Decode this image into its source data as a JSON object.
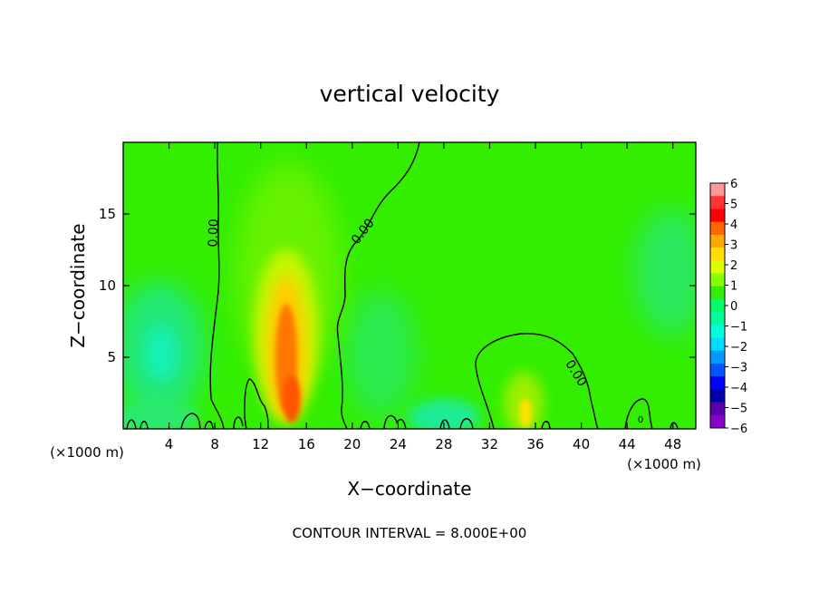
{
  "chart_data": {
    "type": "heatmap",
    "title": "vertical velocity",
    "xlabel": "X−coordinate",
    "ylabel": "Z−coordinate",
    "x_unit": "(×1000 m)",
    "y_unit": "(×1000 m)",
    "xlim": [
      0,
      50
    ],
    "ylim": [
      0,
      20
    ],
    "x_ticks": [
      4,
      8,
      12,
      16,
      20,
      24,
      28,
      32,
      36,
      40,
      44,
      48
    ],
    "y_ticks": [
      5,
      10,
      15
    ],
    "colorbar": {
      "labels": [
        "6",
        "5",
        "4",
        "3",
        "2",
        "1",
        "0",
        "−1",
        "−2",
        "−3",
        "−4",
        "−5",
        "−6"
      ],
      "range": [
        -6,
        6
      ],
      "colors": [
        "#ff9999",
        "#ff3333",
        "#ff0000",
        "#ff6600",
        "#ffaa00",
        "#ffe000",
        "#ddff00",
        "#88ff00",
        "#33ee00",
        "#00ff66",
        "#00ff99",
        "#00ffdd",
        "#00ddff",
        "#0099ff",
        "#0055ff",
        "#0000ff",
        "#0000aa",
        "#5500aa",
        "#8800cc"
      ]
    },
    "contour_labels": [
      "0.00",
      "0.00",
      "0.00",
      "0"
    ],
    "field_features": [
      {
        "kind": "updraft",
        "x": 14.5,
        "z": 4,
        "value": 3.5
      },
      {
        "kind": "updraft",
        "x": 14.5,
        "z": 9,
        "value": 1.2
      },
      {
        "kind": "updraft",
        "x": 35.5,
        "z": 2,
        "value": 2.0
      },
      {
        "kind": "downdraft",
        "x": 3,
        "z": 5,
        "value": -1.5
      },
      {
        "kind": "downdraft",
        "x": 23,
        "z": 5,
        "value": -0.5
      },
      {
        "kind": "downdraft",
        "x": 28,
        "z": 1,
        "value": -1.0
      },
      {
        "kind": "downdraft",
        "x": 47,
        "z": 10,
        "value": -0.5
      }
    ],
    "grid": false,
    "legend": "right"
  },
  "footer": {
    "contour_interval": "CONTOUR INTERVAL = 8.000E+00"
  }
}
